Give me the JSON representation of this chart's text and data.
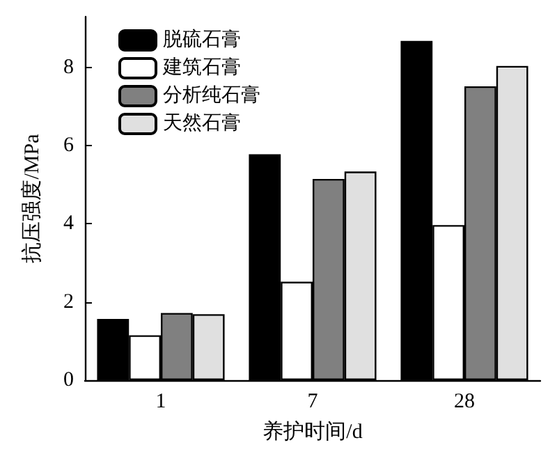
{
  "chart_data": {
    "type": "bar",
    "xlabel": "养护时间/d",
    "ylabel": "抗压强度/MPa",
    "categories": [
      "1",
      "7",
      "28"
    ],
    "series": [
      {
        "name": "脱硫石膏",
        "color": "#000000",
        "values": [
          1.57,
          5.78,
          8.68
        ]
      },
      {
        "name": "建筑石膏",
        "color": "#ffffff",
        "values": [
          1.15,
          2.52,
          3.97
        ]
      },
      {
        "name": "分析纯石膏",
        "color": "#808080",
        "values": [
          1.72,
          5.15,
          7.52
        ]
      },
      {
        "name": "天然石膏",
        "color": "#e0e0e0",
        "values": [
          1.69,
          5.34,
          8.04
        ]
      }
    ],
    "ylim": [
      0,
      9.3
    ],
    "yticks": [
      0,
      2,
      4,
      6,
      8
    ],
    "grid": false,
    "legend": "top left"
  }
}
